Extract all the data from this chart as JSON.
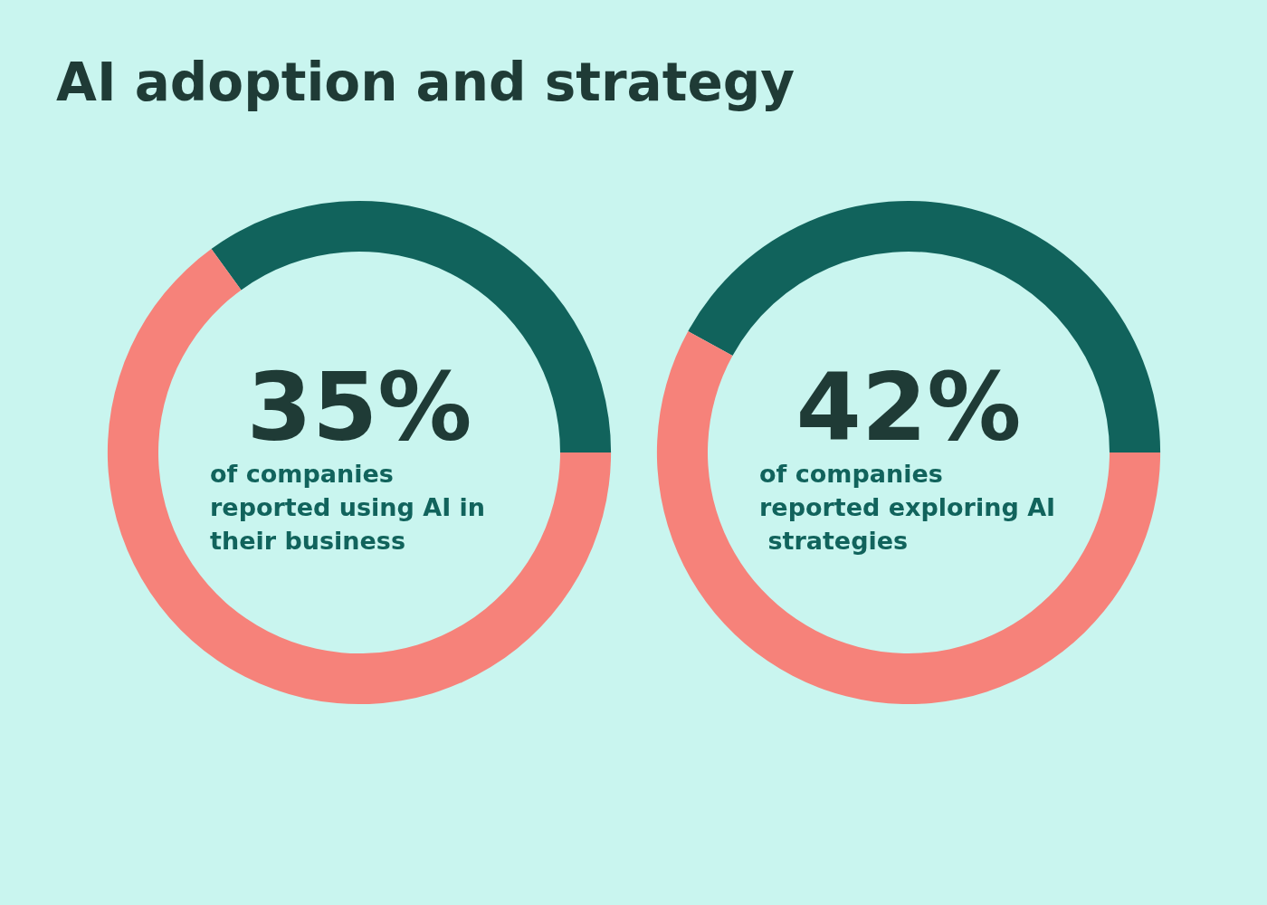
{
  "chart_data": [
    {
      "type": "donut",
      "title": "AI adoption and strategy",
      "categories": [
        null,
        null
      ],
      "values": [
        35,
        65
      ],
      "colors": [
        "#11635c",
        "#f6827a"
      ],
      "value_labels": [
        "35%",
        null
      ],
      "annotations": [
        "of companies reported using AI in their business"
      ]
    },
    {
      "type": "donut",
      "categories": [
        null,
        null
      ],
      "values": [
        42,
        58
      ],
      "colors": [
        "#11635c",
        "#f6827a"
      ],
      "value_labels": [
        "42%",
        null
      ],
      "annotations": [
        "of companies reported exploring AI strategies"
      ]
    }
  ]
}
